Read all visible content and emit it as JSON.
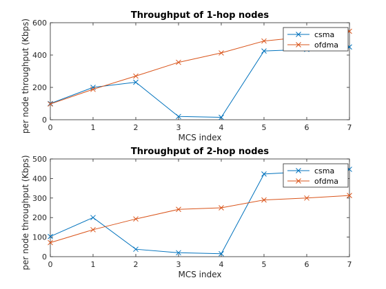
{
  "chart_data": [
    {
      "type": "line",
      "title": "Throughput of 1-hop nodes",
      "xlabel": "MCS index",
      "ylabel": "per node throughput (Kbps)",
      "x": [
        0,
        1,
        2,
        3,
        4,
        5,
        6,
        7
      ],
      "xlim": [
        0,
        7
      ],
      "ylim": [
        0,
        600
      ],
      "xticks": [
        0,
        1,
        2,
        3,
        4,
        5,
        6,
        7
      ],
      "yticks": [
        0,
        200,
        400,
        600
      ],
      "grid": false,
      "legend_position": "top-right",
      "series": [
        {
          "name": "csma",
          "color": "#0072BD",
          "marker": "x",
          "values": [
            100,
            200,
            232,
            20,
            15,
            425,
            435,
            450
          ]
        },
        {
          "name": "ofdma",
          "color": "#D95319",
          "marker": "x",
          "values": [
            97,
            188,
            270,
            355,
            413,
            487,
            513,
            547
          ]
        }
      ]
    },
    {
      "type": "line",
      "title": "Throughput of 2-hop nodes",
      "xlabel": "MCS index",
      "ylabel": "per node throughput (Kbps)",
      "x": [
        0,
        1,
        2,
        3,
        4,
        5,
        6,
        7
      ],
      "xlim": [
        0,
        7
      ],
      "ylim": [
        0,
        500
      ],
      "xticks": [
        0,
        1,
        2,
        3,
        4,
        5,
        6,
        7
      ],
      "yticks": [
        0,
        100,
        200,
        300,
        400,
        500
      ],
      "grid": false,
      "legend_position": "top-right",
      "series": [
        {
          "name": "csma",
          "color": "#0072BD",
          "marker": "x",
          "values": [
            103,
            200,
            38,
            20,
            15,
            423,
            435,
            447
          ]
        },
        {
          "name": "ofdma",
          "color": "#D95319",
          "marker": "x",
          "values": [
            72,
            138,
            193,
            242,
            250,
            290,
            300,
            313
          ]
        }
      ]
    }
  ]
}
